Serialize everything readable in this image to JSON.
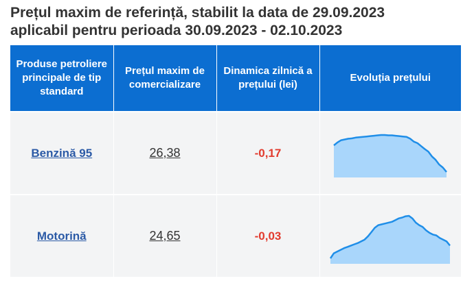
{
  "page": {
    "title_line1": "Prețul maxim de referință, stabilit la data de 29.09.2023",
    "title_line2": "aplicabil pentru perioada 30.09.2023 - 02.10.2023"
  },
  "table": {
    "headers": {
      "product": "Produse petroliere principale de tip standard",
      "price": "Prețul maxim de comercializare",
      "change": "Dinamica zilnică a prețului (lei)",
      "trend": "Evoluția prețului"
    },
    "rows": [
      {
        "product": "Benzină 95",
        "price": "26,38",
        "change": "-0,17"
      },
      {
        "product": "Motorină",
        "price": "24,65",
        "change": "-0,03"
      }
    ]
  },
  "colors": {
    "header_bg": "#0c6ed1",
    "spark_line": "#1f8ee8",
    "spark_fill": "#a9d6fb",
    "negative": "#e23b2e",
    "link": "#2b5aa6"
  },
  "chart_data": [
    {
      "type": "area",
      "series": [
        {
          "values": [
            0.72,
            0.8,
            0.86,
            0.88,
            0.9,
            0.91,
            0.93,
            0.94,
            0.95,
            0.96,
            0.97,
            0.98,
            0.99,
            1.0,
            1.0,
            0.99,
            0.99,
            0.98,
            0.97,
            0.96,
            0.95,
            0.9,
            0.82,
            0.78,
            0.7,
            0.62,
            0.55,
            0.42,
            0.33,
            0.2,
            0.12,
            0.0
          ]
        }
      ]
    },
    {
      "type": "area",
      "series": [
        {
          "values": [
            0.0,
            0.12,
            0.16,
            0.2,
            0.24,
            0.27,
            0.3,
            0.33,
            0.36,
            0.4,
            0.44,
            0.52,
            0.62,
            0.72,
            0.78,
            0.8,
            0.82,
            0.84,
            0.86,
            0.9,
            0.94,
            0.96,
            0.99,
            1.0,
            0.94,
            0.84,
            0.78,
            0.74,
            0.66,
            0.6,
            0.56,
            0.54,
            0.48,
            0.44,
            0.4,
            0.3
          ]
        }
      ]
    }
  ]
}
